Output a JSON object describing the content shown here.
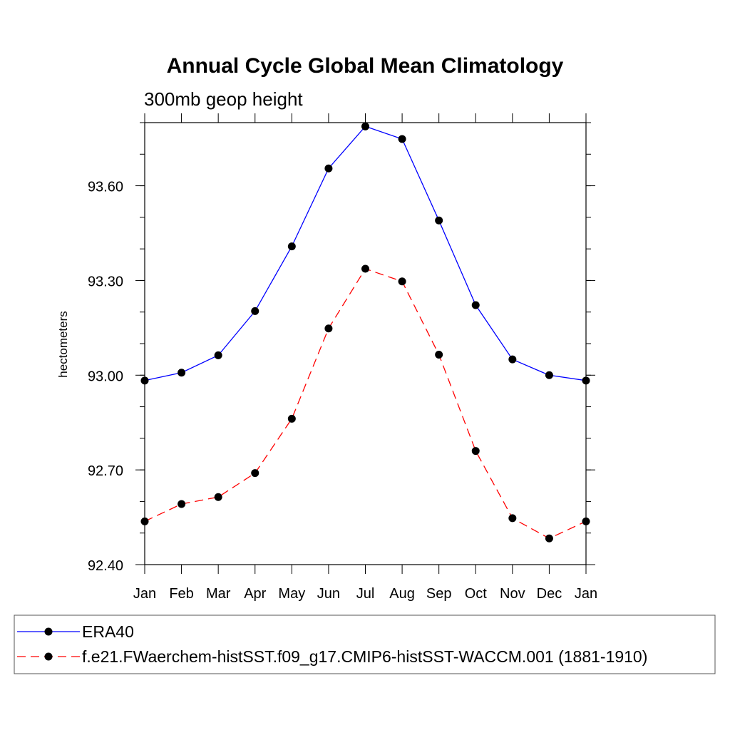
{
  "chart_data": {
    "type": "line",
    "title": "Annual Cycle Global Mean Climatology",
    "subtitle": "300mb geop height",
    "xlabel": "",
    "ylabel": "hectometers",
    "categories": [
      "Jan",
      "Feb",
      "Mar",
      "Apr",
      "May",
      "Jun",
      "Jul",
      "Aug",
      "Sep",
      "Oct",
      "Nov",
      "Dec",
      "Jan"
    ],
    "ylim": [
      92.4,
      93.8
    ],
    "yticks": [
      92.4,
      92.7,
      93.0,
      93.3,
      93.6
    ],
    "ytick_labels": [
      "92.40",
      "92.70",
      "93.00",
      "93.30",
      "93.60"
    ],
    "series": [
      {
        "name": "ERA40",
        "color": "#0000ff",
        "dash": "solid",
        "marker": "filled-circle",
        "values": [
          92.983,
          93.008,
          93.063,
          93.203,
          93.408,
          93.655,
          93.788,
          93.748,
          93.49,
          93.222,
          93.05,
          93.0,
          92.983
        ]
      },
      {
        "name": "f.e21.FWaerchem-histSST.f09_g17.CMIP6-histSST-WACCM.001 (1881-1910)",
        "color": "#ff0000",
        "dash": "dashed",
        "marker": "filled-circle",
        "values": [
          92.537,
          92.592,
          92.614,
          92.69,
          92.862,
          93.148,
          93.337,
          93.297,
          93.065,
          92.76,
          92.547,
          92.483,
          92.537
        ]
      }
    ],
    "grid": false,
    "legend": "bottom"
  }
}
